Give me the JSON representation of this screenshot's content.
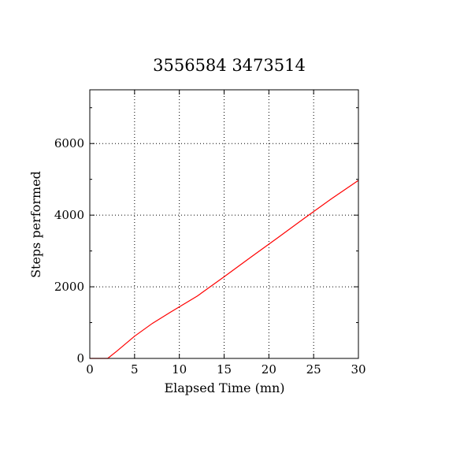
{
  "chart_data": {
    "type": "line",
    "title": "3556584 3473514",
    "xlabel": "Elapsed Time (mn)",
    "ylabel": "Steps performed",
    "xlim": [
      0,
      30
    ],
    "ylim": [
      0,
      7500
    ],
    "xticks": [
      0,
      5,
      10,
      15,
      20,
      25,
      30
    ],
    "yticks": [
      0,
      2000,
      4000,
      6000
    ],
    "yminor": [
      1000,
      3000,
      5000,
      7000
    ],
    "grid": true,
    "series": [
      {
        "color": "#ff0000",
        "x": [
          0,
          2,
          3,
          5,
          7,
          9,
          12,
          15,
          18,
          21,
          24,
          27,
          30
        ],
        "y": [
          0,
          0,
          200,
          620,
          980,
          1290,
          1740,
          2280,
          2830,
          3370,
          3920,
          4460,
          4970
        ]
      }
    ]
  }
}
